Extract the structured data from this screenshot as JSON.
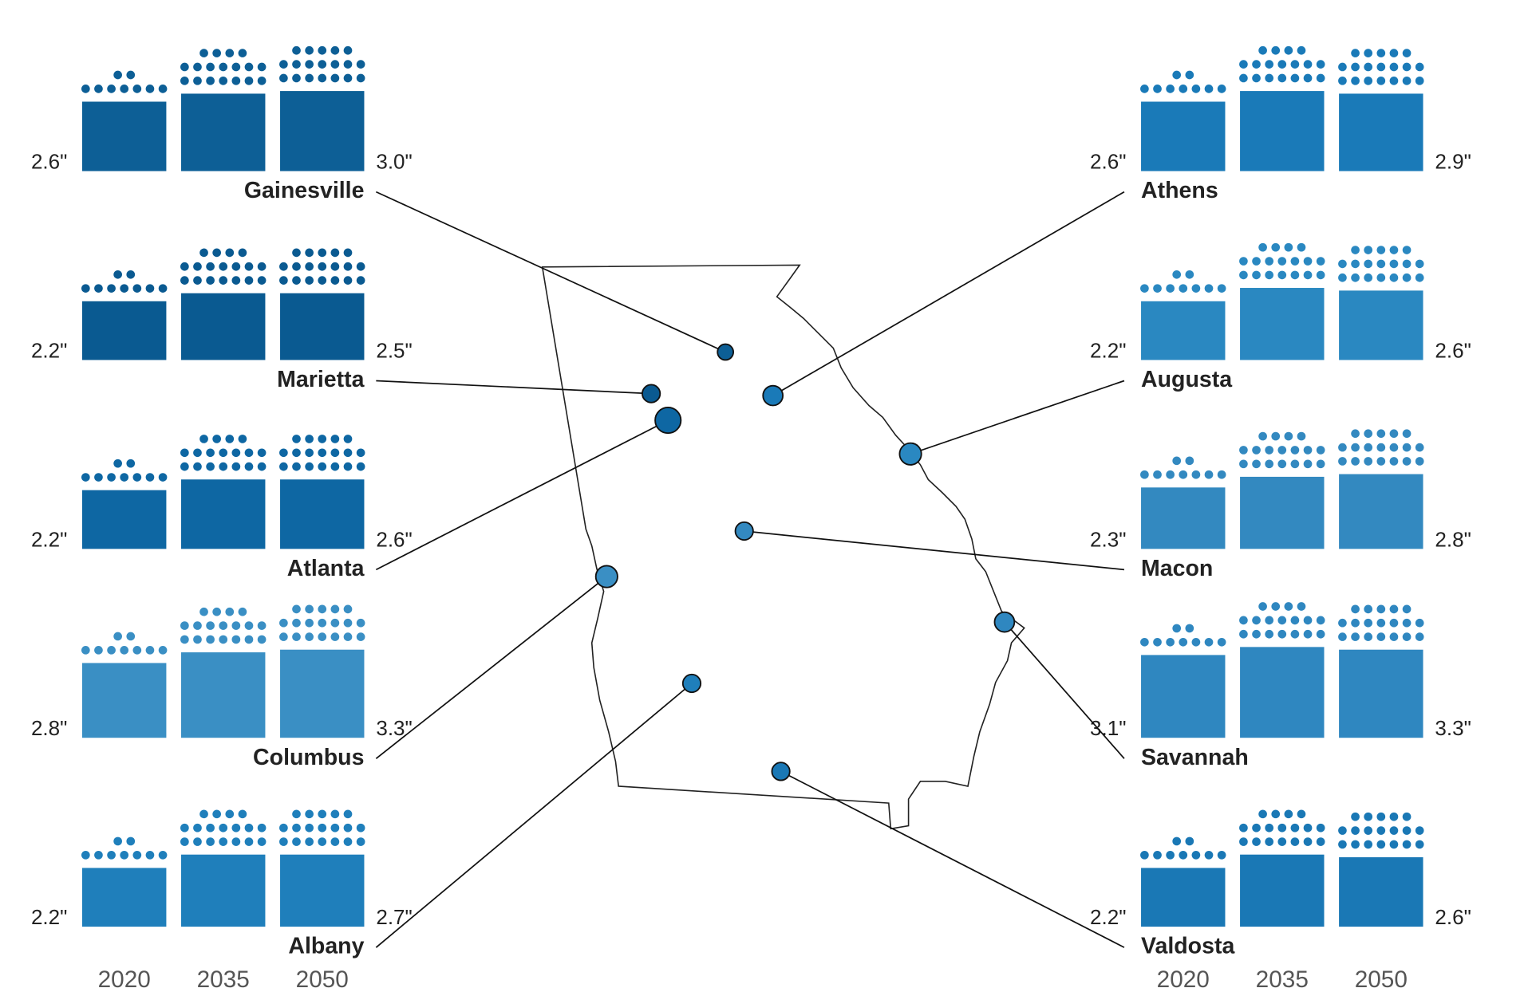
{
  "chart_data": {
    "type": "bar",
    "categories": [
      "2020",
      "2035",
      "2050"
    ],
    "series": [
      {
        "name": "Gainesville",
        "color": "#0d5f96",
        "values": [
          2.6,
          2.9,
          3.0
        ],
        "value_labels": [
          "2.6\"",
          null,
          "3.0\""
        ]
      },
      {
        "name": "Marietta",
        "color": "#0a5a91",
        "values": [
          2.2,
          2.5,
          2.5
        ],
        "value_labels": [
          "2.2\"",
          null,
          "2.5\""
        ]
      },
      {
        "name": "Atlanta",
        "color": "#0e67a3",
        "values": [
          2.2,
          2.6,
          2.6
        ],
        "value_labels": [
          "2.2\"",
          null,
          "2.6\""
        ]
      },
      {
        "name": "Columbus",
        "color": "#3a8fc4",
        "values": [
          2.8,
          3.2,
          3.3
        ],
        "value_labels": [
          "2.8\"",
          null,
          "3.3\""
        ]
      },
      {
        "name": "Albany",
        "color": "#1f7fbb",
        "values": [
          2.2,
          2.7,
          2.7
        ],
        "value_labels": [
          "2.2\"",
          null,
          "2.7\""
        ]
      },
      {
        "name": "Athens",
        "color": "#1a7ab8",
        "values": [
          2.6,
          3.0,
          2.9
        ],
        "value_labels": [
          "2.6\"",
          null,
          "2.9\""
        ]
      },
      {
        "name": "Augusta",
        "color": "#2a88c1",
        "values": [
          2.2,
          2.7,
          2.6
        ],
        "value_labels": [
          "2.2\"",
          null,
          "2.6\""
        ]
      },
      {
        "name": "Macon",
        "color": "#3389c0",
        "values": [
          2.3,
          2.7,
          2.8
        ],
        "value_labels": [
          "2.3\"",
          null,
          "2.8\""
        ]
      },
      {
        "name": "Savannah",
        "color": "#2f87c0",
        "values": [
          3.1,
          3.4,
          3.3
        ],
        "value_labels": [
          "3.1\"",
          null,
          "3.3\""
        ]
      },
      {
        "name": "Valdosta",
        "color": "#1a78b5",
        "values": [
          2.2,
          2.7,
          2.6
        ],
        "value_labels": [
          "2.2\"",
          null,
          "2.6\""
        ]
      }
    ]
  }
}
